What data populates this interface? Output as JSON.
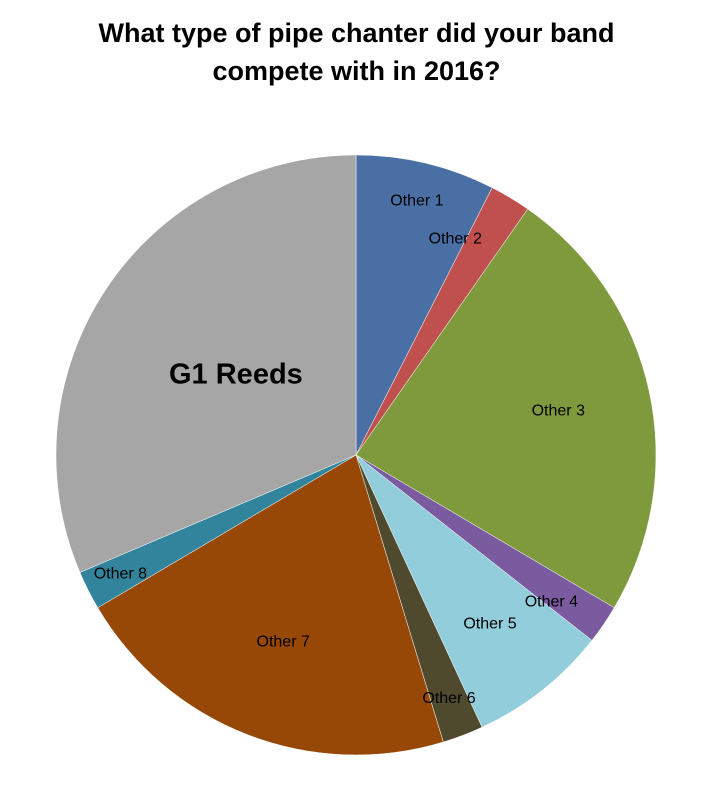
{
  "chart_data": {
    "type": "pie",
    "title_lines": [
      "What type of pipe chanter did your band",
      "compete with in 2016?"
    ],
    "start": "12 o'clock",
    "direction": "clockwise",
    "slices": [
      {
        "label": "Other 1",
        "value": 7.5,
        "color": "#4A6FA5"
      },
      {
        "label": "Other 2",
        "value": 2.2,
        "color": "#C0504D"
      },
      {
        "label": "Other 3",
        "value": 23.8,
        "color": "#7F9A3C"
      },
      {
        "label": "Other 4",
        "value": 2.1,
        "color": "#7A5BA0"
      },
      {
        "label": "Other 5",
        "value": 7.5,
        "color": "#92CDDC"
      },
      {
        "label": "Other 6",
        "value": 2.2,
        "color": "#4F4A2D"
      },
      {
        "label": "Other  7",
        "value": 21.2,
        "color": "#974806"
      },
      {
        "label": "Other 8",
        "value": 2.1,
        "color": "#31849B"
      },
      {
        "label": "G1 Reeds",
        "value": 31.4,
        "color": "#A6A6A6"
      }
    ]
  }
}
